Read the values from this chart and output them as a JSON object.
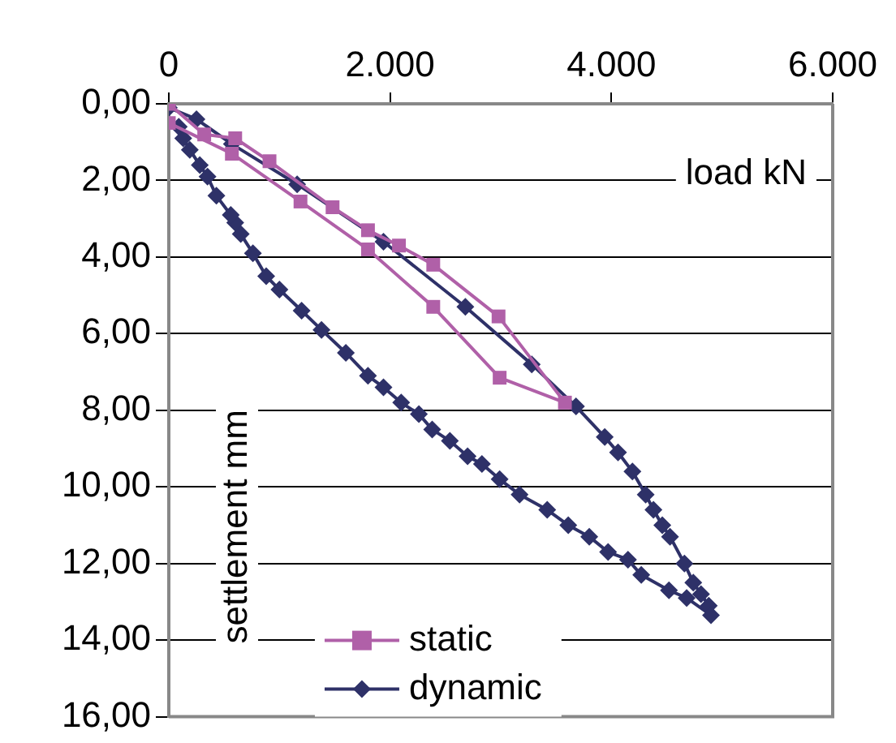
{
  "chart_data": {
    "type": "line",
    "xlabel": "load kN",
    "ylabel": "settlement mm",
    "xlim": [
      0,
      6000
    ],
    "xticks": [
      0,
      {
        "value": 2000,
        "label": "2.000"
      },
      {
        "value": 4000,
        "label": "4.000"
      },
      {
        "value": 6000,
        "label": "6.000"
      }
    ],
    "ylim": [
      16,
      0
    ],
    "yticks": [
      {
        "value": 0,
        "label": "0,00"
      },
      {
        "value": 2,
        "label": "2,00"
      },
      {
        "value": 4,
        "label": "4,00"
      },
      {
        "value": 6,
        "label": "6,00"
      },
      {
        "value": 8,
        "label": "8,00"
      },
      {
        "value": 10,
        "label": "10,00"
      },
      {
        "value": 12,
        "label": "12,00"
      },
      {
        "value": 14,
        "label": "14,00"
      },
      {
        "value": 16,
        "label": "16,00"
      }
    ],
    "grid": "y",
    "legend": "bottom",
    "line_style": "solid",
    "series": [
      {
        "name": "static",
        "color": "#b060a8",
        "marker": "square",
        "x": [
          0,
          320,
          600,
          910,
          1480,
          1800,
          2080,
          2390,
          2980,
          3580,
          2990,
          2390,
          1800,
          1190,
          570,
          0
        ],
        "values": [
          0,
          0.8,
          0.9,
          1.5,
          2.7,
          3.3,
          3.7,
          4.2,
          5.55,
          7.8,
          7.15,
          5.3,
          3.8,
          2.55,
          1.3,
          0.5
        ]
      },
      {
        "name": "dynamic",
        "color": "#2e3168",
        "marker": "diamond",
        "x": [
          0,
          250,
          570,
          1160,
          1940,
          2680,
          3280,
          3680,
          3940,
          4060,
          4190,
          4310,
          4380,
          4460,
          4530,
          4660,
          4740,
          4810,
          4880,
          4900,
          4680,
          4520,
          4270,
          4150,
          3970,
          3800,
          3610,
          3420,
          3170,
          2990,
          2830,
          2700,
          2540,
          2380,
          2260,
          2100,
          1940,
          1800,
          1600,
          1380,
          1200,
          1000,
          880,
          760,
          650,
          600,
          560,
          430,
          350,
          280,
          190,
          130,
          90
        ],
        "values": [
          0.1,
          0.4,
          1.05,
          2.1,
          3.6,
          5.3,
          6.8,
          7.9,
          8.7,
          9.1,
          9.6,
          10.2,
          10.6,
          11.0,
          11.3,
          12.0,
          12.5,
          12.8,
          13.1,
          13.35,
          12.9,
          12.7,
          12.3,
          11.9,
          11.7,
          11.3,
          11.0,
          10.6,
          10.2,
          9.8,
          9.4,
          9.2,
          8.8,
          8.5,
          8.1,
          7.8,
          7.4,
          7.1,
          6.5,
          5.9,
          5.4,
          4.85,
          4.5,
          3.9,
          3.4,
          3.1,
          2.9,
          2.4,
          1.9,
          1.6,
          1.2,
          0.9,
          0.6
        ]
      }
    ]
  }
}
